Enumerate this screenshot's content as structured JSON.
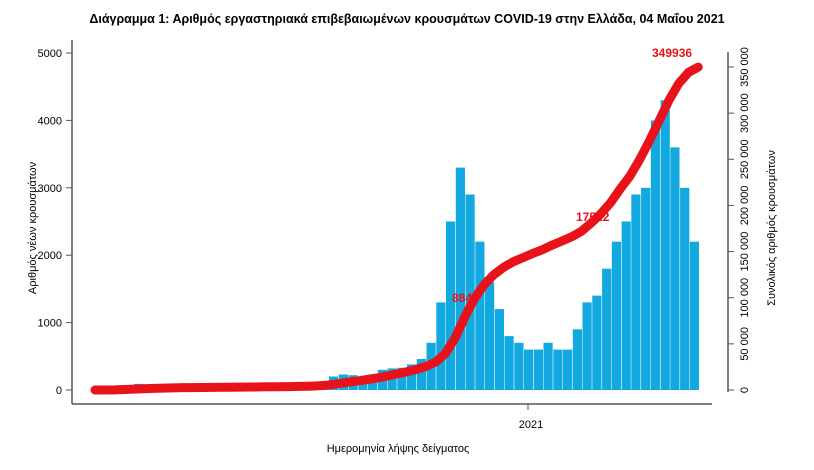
{
  "chart_data": {
    "type": "bar+line",
    "title": "Διάγραμμα 1: Αριθμός εργαστηριακά επιβεβαιωμένων κρουσμάτων COVID-19 στην Ελλάδα, 04 Μαΐου 2021",
    "xlabel": "Ημερομηνία λήψης δείγματος",
    "ylabel": "Αριθμός νέων κρουσμάτων",
    "ylabel_right": "Συνολικός αριθμός κρουσμάτων",
    "x_tick_labels": [
      "2021"
    ],
    "y_ticks": [
      "0",
      "1000",
      "2000",
      "3000",
      "4000",
      "5000"
    ],
    "y_right_ticks": [
      "0",
      "50 000",
      "100 000",
      "150 000",
      "200 000",
      "250 000",
      "300 000",
      "350 000"
    ],
    "ylim": [
      0,
      5000
    ],
    "ylim_right": [
      0,
      350000
    ],
    "x_range": [
      "2020-02-26",
      "2021-05-04"
    ],
    "grid": false,
    "colors": {
      "bars": "#12a8e0",
      "cumulative_line": "#e8121b",
      "annotations": "#e8121b"
    },
    "series": [
      {
        "kind": "bar",
        "axis": "left",
        "x_week_start": [
          "2020-02-26",
          "2020-03-04",
          "2020-03-11",
          "2020-03-18",
          "2020-03-25",
          "2020-04-01",
          "2020-04-08",
          "2020-04-15",
          "2020-04-22",
          "2020-04-29",
          "2020-05-06",
          "2020-05-13",
          "2020-05-20",
          "2020-05-27",
          "2020-06-03",
          "2020-06-10",
          "2020-06-17",
          "2020-06-24",
          "2020-07-01",
          "2020-07-08",
          "2020-07-15",
          "2020-07-22",
          "2020-07-29",
          "2020-08-05",
          "2020-08-12",
          "2020-08-19",
          "2020-08-26",
          "2020-09-02",
          "2020-09-09",
          "2020-09-16",
          "2020-09-23",
          "2020-09-30",
          "2020-10-07",
          "2020-10-14",
          "2020-10-21",
          "2020-10-28",
          "2020-11-04",
          "2020-11-11",
          "2020-11-18",
          "2020-11-25",
          "2020-12-02",
          "2020-12-09",
          "2020-12-16",
          "2020-12-23",
          "2020-12-30",
          "2021-01-06",
          "2021-01-13",
          "2021-01-20",
          "2021-01-27",
          "2021-02-03",
          "2021-02-10",
          "2021-02-17",
          "2021-02-24",
          "2021-03-03",
          "2021-03-10",
          "2021-03-17",
          "2021-03-24",
          "2021-03-31",
          "2021-04-07",
          "2021-04-14",
          "2021-04-21",
          "2021-04-28"
        ],
        "values": [
          5,
          20,
          60,
          70,
          90,
          60,
          40,
          60,
          30,
          15,
          15,
          15,
          15,
          20,
          10,
          25,
          20,
          15,
          15,
          25,
          25,
          35,
          50,
          130,
          200,
          230,
          220,
          180,
          230,
          300,
          320,
          330,
          380,
          460,
          700,
          1300,
          2500,
          3300,
          2900,
          2200,
          1600,
          1200,
          800,
          700,
          600,
          600,
          700,
          600,
          600,
          900,
          1300,
          1400,
          1800,
          2200,
          2500,
          2900,
          3000,
          4000,
          4300,
          3600,
          3000,
          2200
        ]
      },
      {
        "kind": "line",
        "axis": "right",
        "values": [
          0,
          30,
          150,
          500,
          1000,
          1400,
          1750,
          2100,
          2300,
          2550,
          2650,
          2750,
          2850,
          2900,
          3000,
          3100,
          3250,
          3350,
          3450,
          3550,
          3700,
          3900,
          4150,
          4500,
          5400,
          6800,
          8400,
          9900,
          11400,
          13000,
          15100,
          17300,
          19600,
          22200,
          25400,
          30200,
          39300,
          56000,
          79000,
          99000,
          114000,
          125000,
          133000,
          139000,
          143500,
          148000,
          152000,
          157000,
          161500,
          166000,
          172000,
          181000,
          191000,
          203000,
          218000,
          232000,
          250000,
          270000,
          292000,
          314000,
          332000,
          344000,
          349936
        ]
      }
    ],
    "annotations": [
      "884",
      "17522",
      "349936"
    ]
  }
}
